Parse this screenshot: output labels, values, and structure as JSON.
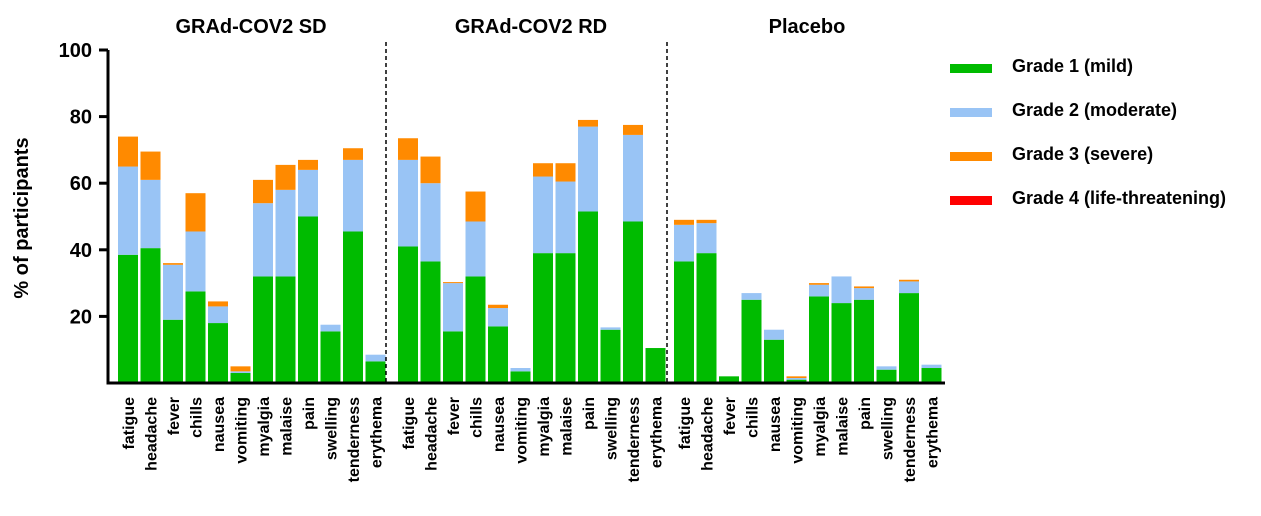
{
  "chart_data": {
    "type": "bar",
    "stacked": true,
    "ylabel": "% of participants",
    "ylim": [
      0,
      100
    ],
    "yticks": [
      20,
      40,
      60,
      80,
      100
    ],
    "panels": [
      {
        "title": "GRAd-COV2 SD",
        "categories": [
          "fatigue",
          "headache",
          "fever",
          "chills",
          "nausea",
          "vomiting",
          "myalgia",
          "malaise",
          "pain",
          "swelling",
          "tenderness",
          "erythema"
        ]
      },
      {
        "title": "GRAd-COV2 RD",
        "categories": [
          "fatigue",
          "headache",
          "fever",
          "chills",
          "nausea",
          "vomiting",
          "myalgia",
          "malaise",
          "pain",
          "swelling",
          "tenderness",
          "erythema"
        ]
      },
      {
        "title": "Placebo",
        "categories": [
          "fatigue",
          "headache",
          "fever",
          "chills",
          "nausea",
          "vomiting",
          "myalgia",
          "malaise",
          "pain",
          "swelling",
          "tenderness",
          "erythema"
        ]
      }
    ],
    "series": [
      {
        "name": "Grade 1 (mild)",
        "color": "#00bb00",
        "values": [
          [
            38.5,
            40.5,
            19,
            27.5,
            18,
            3,
            32,
            32,
            50,
            15.5,
            45.5,
            6.5
          ],
          [
            41,
            36.5,
            15.5,
            32,
            17,
            3.5,
            39,
            39,
            51.5,
            16,
            48.5,
            10.5
          ],
          [
            36.5,
            39,
            2,
            25,
            13,
            1,
            26,
            24,
            25,
            4,
            27,
            4.5
          ]
        ]
      },
      {
        "name": "Grade 2 (moderate)",
        "color": "#99c4f5",
        "values": [
          [
            26.5,
            20.5,
            16.5,
            18,
            5,
            0.5,
            22,
            26,
            14,
            2,
            21.5,
            2
          ],
          [
            26,
            23.5,
            14.5,
            16.5,
            5.5,
            1,
            23,
            21.5,
            25.5,
            0.7,
            26,
            0
          ],
          [
            11,
            9,
            0,
            2,
            3,
            0.5,
            3.5,
            8,
            3.5,
            1,
            3.5,
            1
          ]
        ]
      },
      {
        "name": "Grade 3 (severe)",
        "color": "#ff8a00",
        "values": [
          [
            9,
            8.5,
            0.5,
            11.5,
            1.5,
            1.5,
            7,
            7.5,
            3,
            0,
            3.5,
            0
          ],
          [
            6.5,
            8,
            0.3,
            9,
            1,
            0,
            4,
            5.5,
            2,
            0,
            3,
            0
          ],
          [
            1.5,
            1,
            0,
            0,
            0,
            0.5,
            0.5,
            0,
            0.5,
            0,
            0.5,
            0
          ]
        ]
      },
      {
        "name": "Grade 4 (life-threatening)",
        "color": "#ff0000",
        "values": [
          [
            0,
            0,
            0,
            0,
            0,
            0,
            0,
            0,
            0,
            0,
            0,
            0
          ],
          [
            0,
            0,
            0,
            0,
            0,
            0,
            0,
            0,
            0,
            0,
            0,
            0
          ],
          [
            0,
            0,
            0,
            0,
            0,
            0,
            0,
            0,
            0,
            0,
            0,
            0
          ]
        ]
      }
    ],
    "legend_position": "right",
    "grid": false
  }
}
